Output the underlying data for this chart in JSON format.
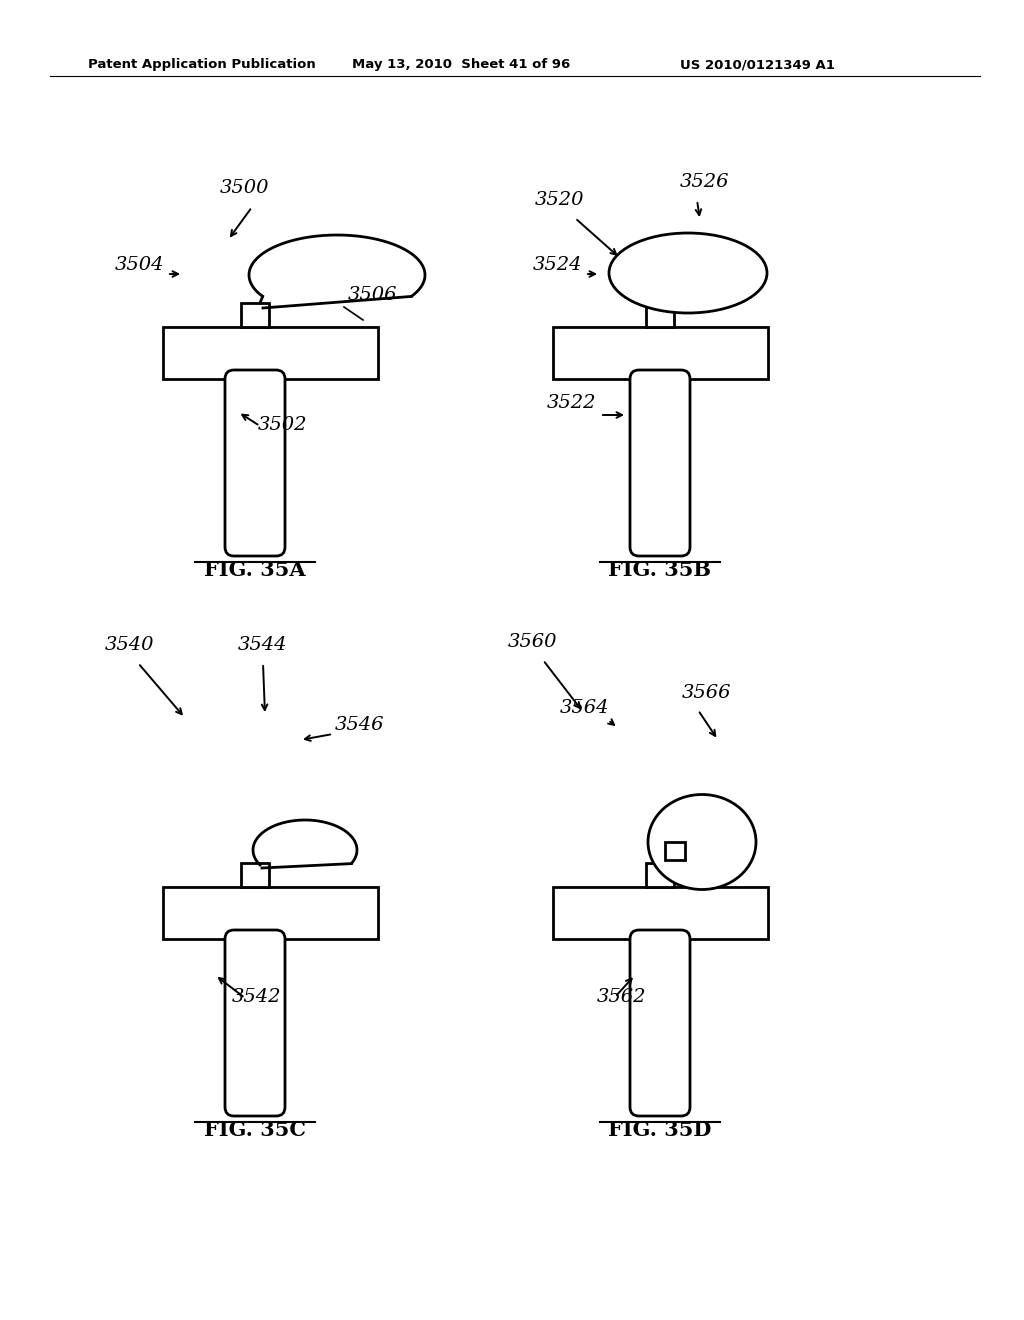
{
  "bg_color": "#ffffff",
  "header_left": "Patent Application Publication",
  "header_mid": "May 13, 2010  Sheet 41 of 96",
  "header_right": "US 2010/0121349 A1",
  "lw": 2.0
}
